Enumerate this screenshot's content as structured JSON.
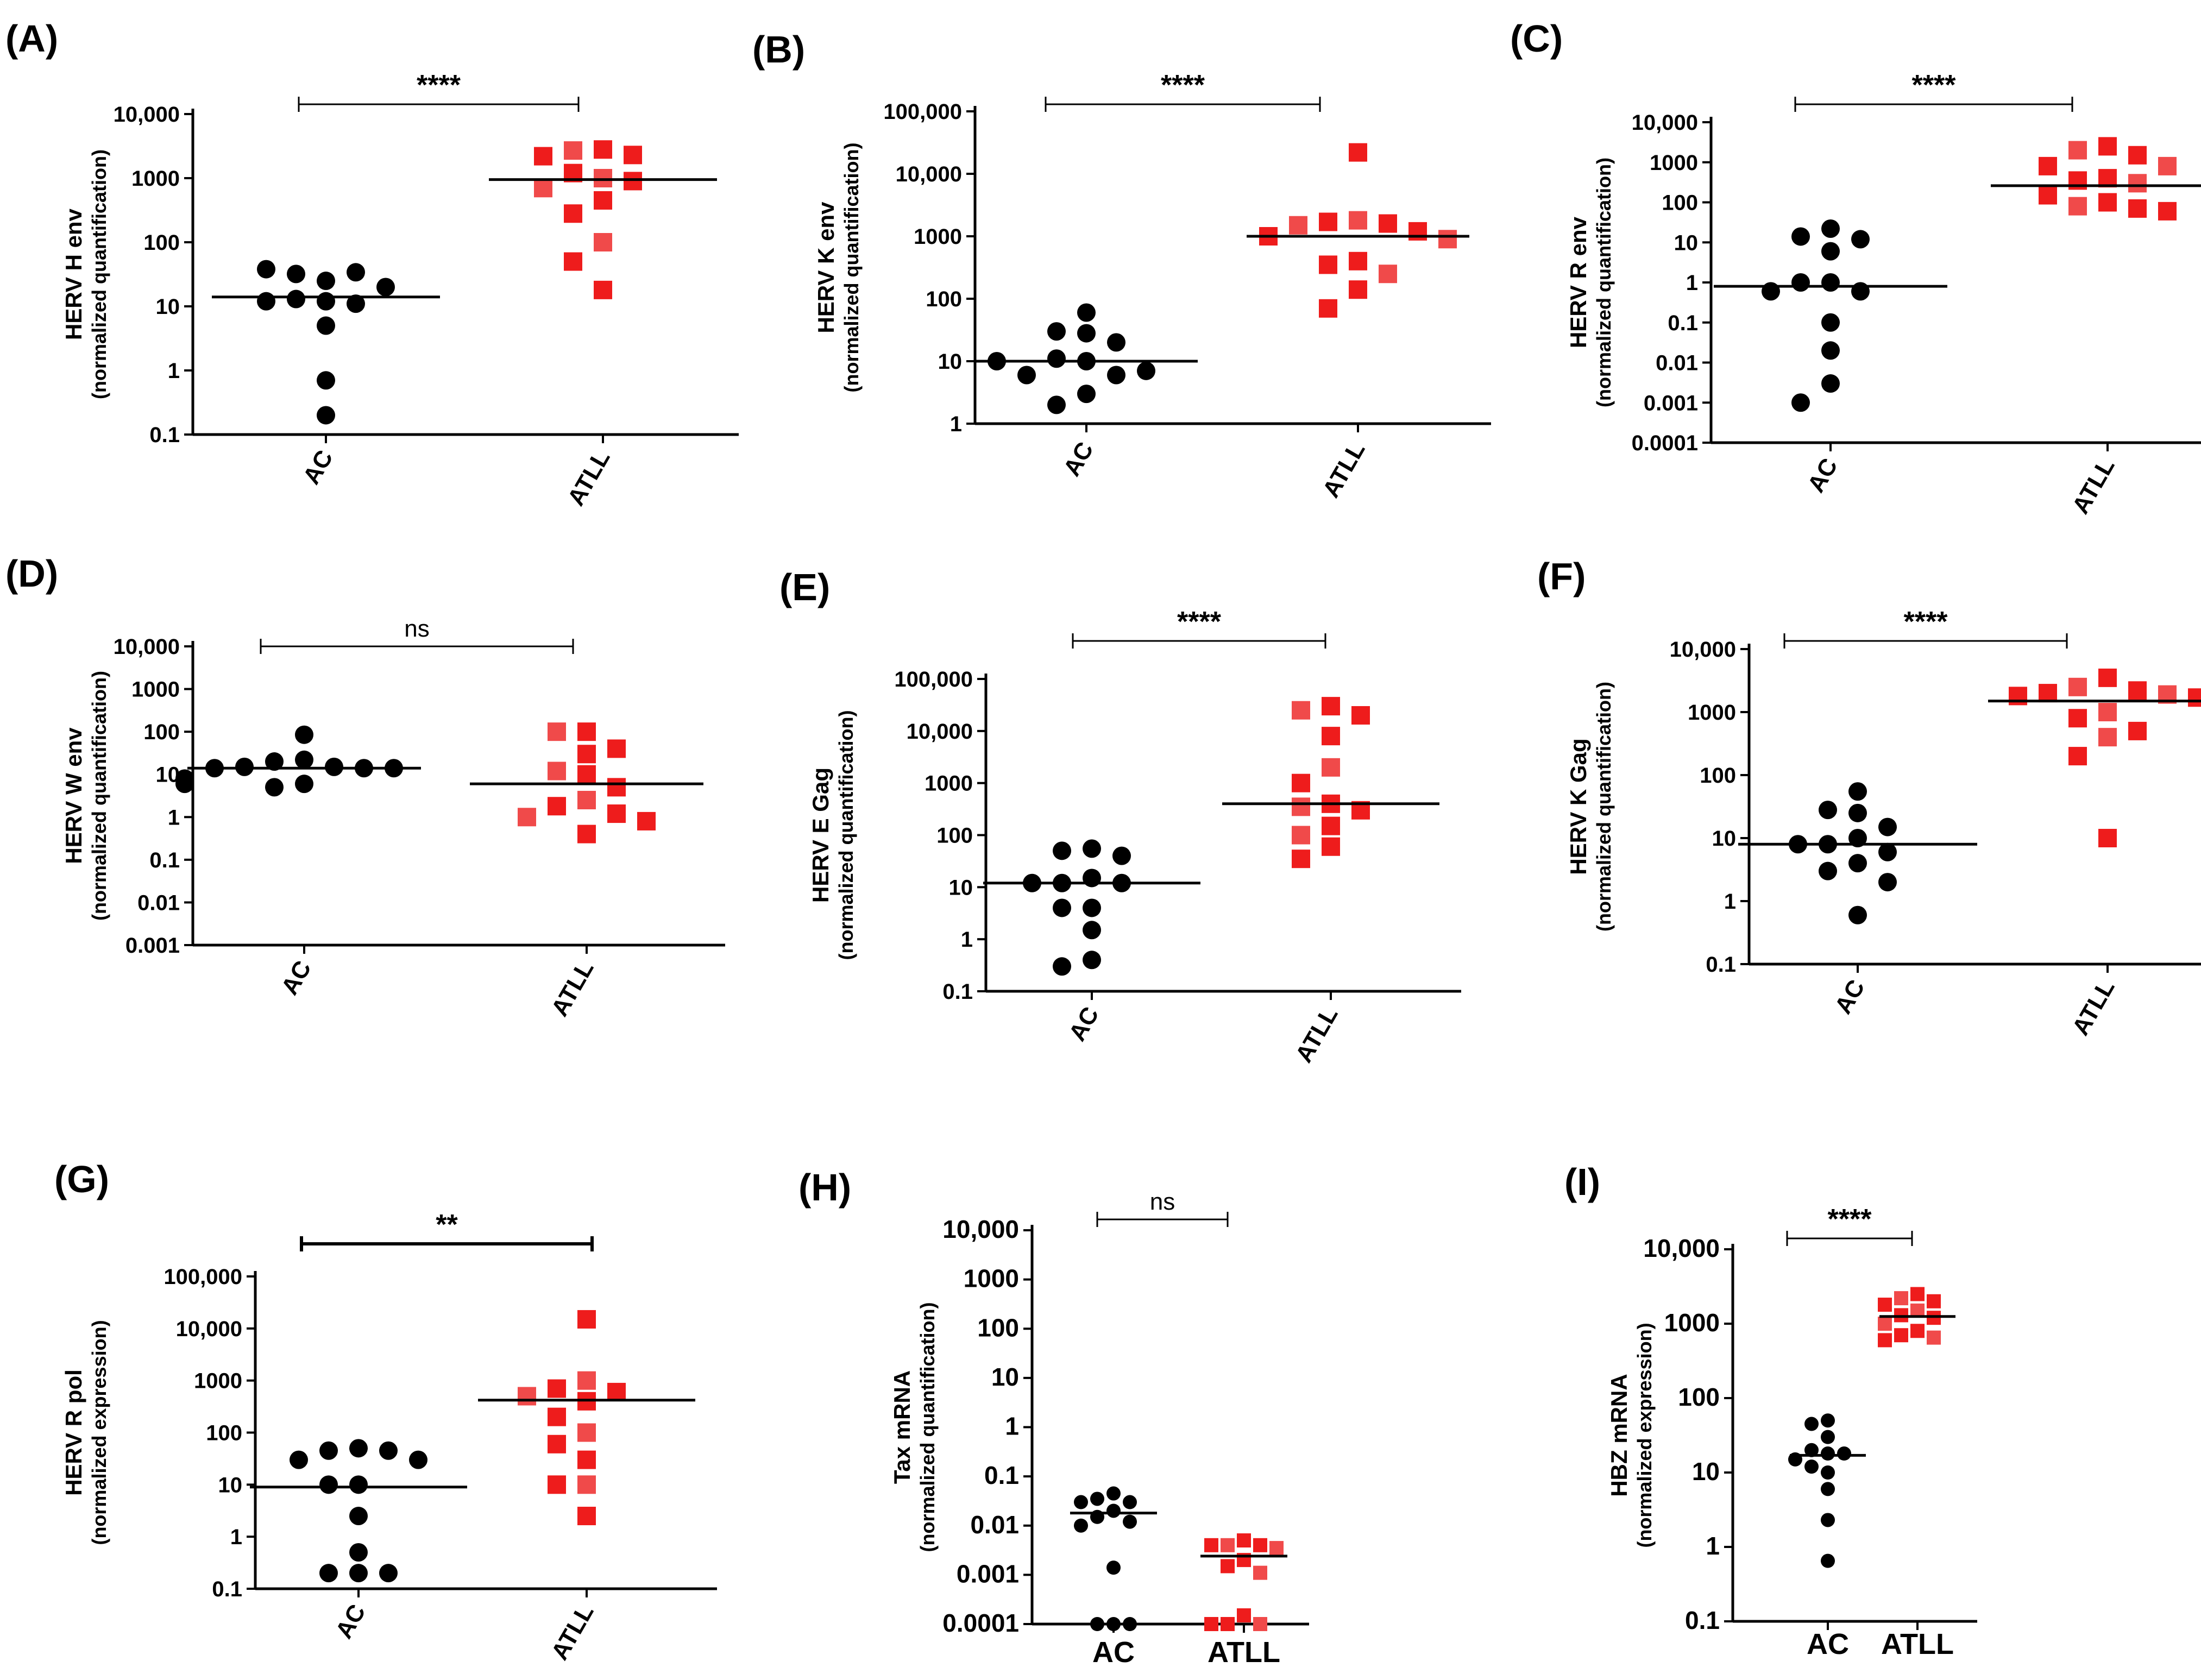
{
  "colors": {
    "ac": "#000000",
    "atll": "#ee1c1c",
    "atll_light": "#f04a4a"
  },
  "chart_data": [
    {
      "type": "scatter",
      "panel_label": "(A)",
      "ylabel": "HERV H env",
      "ylabel_sub": "(normalized quantification)",
      "categories": [
        "AC",
        "ATLL"
      ],
      "y_scale": "log",
      "ylim": [
        0.1,
        10000
      ],
      "y_ticks": [
        0.1,
        1,
        10,
        100,
        1000,
        10000
      ],
      "y_tick_labels": [
        "0.1",
        "1",
        "10",
        "100",
        "1000",
        "10,000"
      ],
      "significance": "****",
      "series": [
        {
          "name": "AC",
          "marker": "circle",
          "median": 14,
          "values": [
            25,
            32,
            34,
            38,
            20,
            13,
            12,
            5,
            11,
            12,
            0.7,
            0.2
          ]
        },
        {
          "name": "ATLL",
          "marker": "square",
          "median": 950,
          "values": [
            2800,
            2700,
            2300,
            2200,
            1000,
            1200,
            900,
            700,
            450,
            280,
            100,
            50,
            18
          ]
        }
      ]
    },
    {
      "type": "scatter",
      "panel_label": "(B)",
      "ylabel": "HERV K env",
      "ylabel_sub": "(normalized quantification)",
      "categories": [
        "AC",
        "ATLL"
      ],
      "y_scale": "log",
      "ylim": [
        1,
        100000
      ],
      "y_ticks": [
        1,
        10,
        100,
        1000,
        10000,
        100000
      ],
      "y_tick_labels": [
        "1",
        "10",
        "100",
        "1000",
        "10,000",
        "100,000"
      ],
      "significance": "****",
      "series": [
        {
          "name": "AC",
          "marker": "circle",
          "median": 10,
          "values": [
            60,
            30,
            28,
            20,
            10,
            11,
            6,
            6,
            7,
            10,
            3,
            2
          ]
        },
        {
          "name": "ATLL",
          "marker": "square",
          "median": 1000,
          "values": [
            22000,
            1800,
            1700,
            1600,
            1500,
            1200,
            1000,
            900,
            400,
            350,
            250,
            140,
            70
          ]
        }
      ]
    },
    {
      "type": "scatter",
      "panel_label": "(C)",
      "ylabel": "HERV R env",
      "ylabel_sub": "(normalized quantification)",
      "categories": [
        "AC",
        "ATLL"
      ],
      "y_scale": "log",
      "ylim": [
        0.0001,
        10000
      ],
      "y_ticks": [
        0.0001,
        0.001,
        0.01,
        0.1,
        1,
        10,
        100,
        1000,
        10000
      ],
      "y_tick_labels": [
        "0.0001",
        "0.001",
        "0.01",
        "0.1",
        "1",
        "10",
        "100",
        "1000",
        "10,000"
      ],
      "significance": "****",
      "series": [
        {
          "name": "AC",
          "marker": "circle",
          "median": 0.8,
          "values": [
            22,
            14,
            12,
            6,
            1,
            1,
            0.6,
            0.6,
            0.1,
            0.02,
            0.003,
            0.001
          ]
        },
        {
          "name": "ATLL",
          "marker": "square",
          "median": 260,
          "values": [
            2500,
            2000,
            1500,
            800,
            800,
            400,
            350,
            300,
            150,
            100,
            80,
            70,
            60
          ]
        }
      ]
    },
    {
      "type": "scatter",
      "panel_label": "(D)",
      "ylabel": "HERV W env",
      "ylabel_sub": "(normalized quantification)",
      "categories": [
        "AC",
        "ATLL"
      ],
      "y_scale": "log",
      "ylim": [
        0.001,
        10000
      ],
      "y_ticks": [
        0.001,
        0.01,
        0.1,
        1,
        10,
        100,
        1000,
        10000
      ],
      "y_tick_labels": [
        "0.001",
        "0.01",
        "0.1",
        "1",
        "10",
        "100",
        "1000",
        "10,000"
      ],
      "significance": "ns",
      "series": [
        {
          "name": "AC",
          "marker": "circle",
          "median": 14,
          "values": [
            85,
            22,
            20,
            15,
            15,
            14,
            14,
            14,
            8,
            6,
            5,
            6
          ]
        },
        {
          "name": "ATLL",
          "marker": "square",
          "median": 6,
          "values": [
            100,
            100,
            40,
            30,
            12,
            10,
            5,
            2.5,
            1.8,
            1.2,
            1,
            0.4,
            0.8
          ]
        }
      ]
    },
    {
      "type": "scatter",
      "panel_label": "(E)",
      "ylabel": "HERV E Gag",
      "ylabel_sub": "(normalized quantification)",
      "categories": [
        "AC",
        "ATLL"
      ],
      "y_scale": "log",
      "ylim": [
        0.1,
        100000
      ],
      "y_ticks": [
        0.1,
        1,
        10,
        100,
        1000,
        10000,
        100000
      ],
      "y_tick_labels": [
        "0.1",
        "1",
        "10",
        "100",
        "1000",
        "10,000",
        "100,000"
      ],
      "significance": "****",
      "series": [
        {
          "name": "AC",
          "marker": "circle",
          "median": 12,
          "values": [
            55,
            50,
            40,
            15,
            12,
            12,
            12,
            4,
            4,
            1.5,
            0.4,
            0.3
          ]
        },
        {
          "name": "ATLL",
          "marker": "square",
          "median": 400,
          "values": [
            30000,
            25000,
            20000,
            8000,
            2000,
            1000,
            400,
            350,
            300,
            150,
            100,
            60,
            35
          ]
        }
      ]
    },
    {
      "type": "scatter",
      "panel_label": "(F)",
      "ylabel": "HERV K Gag",
      "ylabel_sub": "(normalized quantification)",
      "categories": [
        "AC",
        "ATLL"
      ],
      "y_scale": "log",
      "ylim": [
        0.1,
        10000
      ],
      "y_ticks": [
        0.1,
        1,
        10,
        100,
        1000,
        10000
      ],
      "y_tick_labels": [
        "0.1",
        "1",
        "10",
        "100",
        "1000",
        "10,000"
      ],
      "significance": "****",
      "series": [
        {
          "name": "AC",
          "marker": "circle",
          "median": 8,
          "values": [
            55,
            28,
            25,
            15,
            10,
            8,
            8,
            6,
            4,
            3,
            2,
            0.6
          ]
        },
        {
          "name": "ATLL",
          "marker": "square",
          "median": 1500,
          "values": [
            3500,
            2500,
            2200,
            2000,
            1900,
            1800,
            1700,
            1000,
            800,
            500,
            400,
            200,
            10
          ]
        }
      ]
    },
    {
      "type": "scatter",
      "panel_label": "(G)",
      "ylabel": "HERV R pol",
      "ylabel_sub": "(normalized expression)",
      "categories": [
        "AC",
        "ATLL"
      ],
      "y_scale": "log",
      "ylim": [
        0.1,
        100000
      ],
      "y_ticks": [
        0.1,
        1,
        10,
        100,
        1000,
        10000,
        100000
      ],
      "y_tick_labels": [
        "0.1",
        "1",
        "10",
        "100",
        "1000",
        "10,000",
        "100,000"
      ],
      "significance": "**",
      "series": [
        {
          "name": "AC",
          "marker": "circle",
          "median": 9,
          "values": [
            50,
            45,
            45,
            30,
            30,
            10,
            10,
            2.5,
            0.5,
            0.2,
            0.2,
            0.2
          ]
        },
        {
          "name": "ATLL",
          "marker": "square",
          "median": 420,
          "values": [
            15000,
            1000,
            700,
            600,
            500,
            400,
            200,
            100,
            60,
            30,
            10,
            10,
            2.5
          ]
        }
      ]
    },
    {
      "type": "scatter",
      "panel_label": "(H)",
      "ylabel": "Tax mRNA",
      "ylabel_sub": "(normalized quantification)",
      "categories": [
        "AC",
        "ATLL"
      ],
      "y_scale": "log",
      "ylim": [
        0.0001,
        10000
      ],
      "y_ticks": [
        0.0001,
        0.001,
        0.01,
        0.1,
        1,
        10,
        100,
        1000,
        10000
      ],
      "y_tick_labels": [
        "0.0001",
        "0.001",
        "0.01",
        "0.1",
        "1",
        "10",
        "100",
        "1000",
        "10,000"
      ],
      "significance": "ns",
      "series": [
        {
          "name": "AC",
          "marker": "circle",
          "median": 0.018,
          "values": [
            0.045,
            0.035,
            0.03,
            0.03,
            0.02,
            0.015,
            0.012,
            0.01,
            0.0014,
            0.0001,
            0.0001,
            0.0001
          ]
        },
        {
          "name": "ATLL",
          "marker": "square",
          "median": 0.0024,
          "values": [
            0.005,
            0.004,
            0.004,
            0.004,
            0.0035,
            0.002,
            0.0015,
            0.0011,
            0.00015,
            0.0001,
            0.0001,
            0.0001
          ]
        }
      ]
    },
    {
      "type": "scatter",
      "panel_label": "(I)",
      "ylabel": "HBZ mRNA",
      "ylabel_sub": "(normalized expression)",
      "categories": [
        "AC",
        "ATLL"
      ],
      "y_scale": "log",
      "ylim": [
        0.1,
        10000
      ],
      "y_ticks": [
        0.1,
        1,
        10,
        100,
        1000,
        10000
      ],
      "y_tick_labels": [
        "0.1",
        "1",
        "10",
        "100",
        "1000",
        "10,000"
      ],
      "significance": "****",
      "series": [
        {
          "name": "AC",
          "marker": "circle",
          "median": 17,
          "values": [
            50,
            45,
            30,
            20,
            18,
            18,
            15,
            12,
            10,
            6,
            2.3,
            0.65
          ]
        },
        {
          "name": "ATLL",
          "marker": "square",
          "median": 1250,
          "values": [
            2500,
            2200,
            2000,
            1800,
            1500,
            1300,
            1200,
            1000,
            800,
            700,
            650,
            600
          ]
        }
      ]
    }
  ]
}
